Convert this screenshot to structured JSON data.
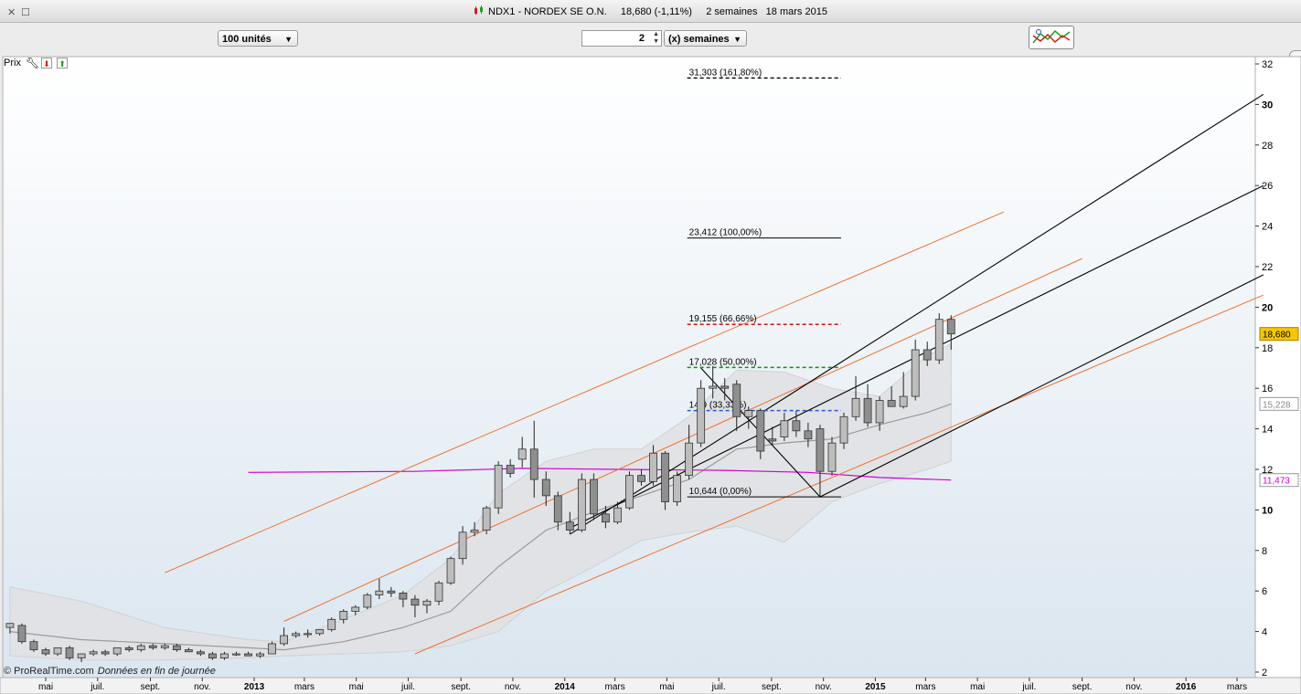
{
  "window": {
    "title": "NDX1 - NORDEX SE O.N.     18,680 (-1,11%)     2 semaines   18 mars 2015"
  },
  "toolbar": {
    "units_select": "100 unités",
    "period_value": "2",
    "period_unit_select": "(x) semaines"
  },
  "panel": {
    "label": "Prix",
    "icons": [
      "wrench-icon",
      "arrow-down-icon",
      "arrow-up-icon"
    ]
  },
  "credit": {
    "source": "© ProRealTime.com",
    "note": "Données en fin de journée"
  },
  "colors": {
    "candle": "#a9a9a9",
    "band_fill": "#e0e1e3",
    "ma_line": "#9a9a9a",
    "long_ma": "#d400d4",
    "channel_black": "#000000",
    "channel_orange": "#f07030",
    "fib_100": "#000000",
    "fib_66": "#d00000",
    "fib_50": "#00a000",
    "fib_33": "#3050e0",
    "price_badge": "#f6c600"
  },
  "chart_data": {
    "type": "candlestick",
    "y_axis": {
      "range": [
        2,
        32
      ],
      "ticks": [
        2,
        4,
        6,
        8,
        10,
        12,
        14,
        16,
        18,
        20,
        22,
        24,
        26,
        28,
        30,
        32
      ],
      "bold_ticks": [
        10,
        20,
        30
      ]
    },
    "x_axis": {
      "labels": [
        {
          "t": "2012-05-01",
          "label": "mai",
          "bold": false
        },
        {
          "t": "2012-07-01",
          "label": "juil.",
          "bold": false
        },
        {
          "t": "2012-09-01",
          "label": "sept.",
          "bold": false
        },
        {
          "t": "2012-11-01",
          "label": "nov.",
          "bold": false
        },
        {
          "t": "2013-01-01",
          "label": "2013",
          "bold": true
        },
        {
          "t": "2013-03-01",
          "label": "mars",
          "bold": false
        },
        {
          "t": "2013-05-01",
          "label": "mai",
          "bold": false
        },
        {
          "t": "2013-07-01",
          "label": "juil.",
          "bold": false
        },
        {
          "t": "2013-09-01",
          "label": "sept.",
          "bold": false
        },
        {
          "t": "2013-11-01",
          "label": "nov.",
          "bold": false
        },
        {
          "t": "2014-01-01",
          "label": "2014",
          "bold": true
        },
        {
          "t": "2014-03-01",
          "label": "mars",
          "bold": false
        },
        {
          "t": "2014-05-01",
          "label": "mai",
          "bold": false
        },
        {
          "t": "2014-07-01",
          "label": "juil.",
          "bold": false
        },
        {
          "t": "2014-09-01",
          "label": "sept.",
          "bold": false
        },
        {
          "t": "2014-11-01",
          "label": "nov.",
          "bold": false
        },
        {
          "t": "2015-01-01",
          "label": "2015",
          "bold": true
        },
        {
          "t": "2015-03-01",
          "label": "mars",
          "bold": false
        },
        {
          "t": "2015-05-01",
          "label": "mai",
          "bold": false
        },
        {
          "t": "2015-07-01",
          "label": "juil.",
          "bold": false
        },
        {
          "t": "2015-09-01",
          "label": "sept.",
          "bold": false
        },
        {
          "t": "2015-11-01",
          "label": "nov.",
          "bold": false
        },
        {
          "t": "2016-01-01",
          "label": "2016",
          "bold": true
        },
        {
          "t": "2016-03-01",
          "label": "mars",
          "bold": false
        }
      ]
    },
    "candles": [
      {
        "t": "2012-03-20",
        "o": 4.2,
        "h": 4.4,
        "l": 3.9,
        "c": 4.4
      },
      {
        "t": "2012-04-03",
        "o": 4.3,
        "h": 4.4,
        "l": 3.4,
        "c": 3.5
      },
      {
        "t": "2012-04-17",
        "o": 3.5,
        "h": 3.6,
        "l": 3.0,
        "c": 3.1
      },
      {
        "t": "2012-05-01",
        "o": 3.1,
        "h": 3.2,
        "l": 2.8,
        "c": 2.9
      },
      {
        "t": "2012-05-15",
        "o": 2.9,
        "h": 3.2,
        "l": 2.8,
        "c": 3.2
      },
      {
        "t": "2012-05-29",
        "o": 3.2,
        "h": 3.3,
        "l": 2.6,
        "c": 2.7
      },
      {
        "t": "2012-06-12",
        "o": 2.7,
        "h": 2.9,
        "l": 2.5,
        "c": 2.9
      },
      {
        "t": "2012-06-26",
        "o": 2.9,
        "h": 3.1,
        "l": 2.8,
        "c": 3.0
      },
      {
        "t": "2012-07-10",
        "o": 3.0,
        "h": 3.1,
        "l": 2.8,
        "c": 2.9
      },
      {
        "t": "2012-07-24",
        "o": 2.9,
        "h": 3.2,
        "l": 2.8,
        "c": 3.2
      },
      {
        "t": "2012-08-07",
        "o": 3.2,
        "h": 3.3,
        "l": 3.0,
        "c": 3.1
      },
      {
        "t": "2012-08-21",
        "o": 3.1,
        "h": 3.4,
        "l": 3.0,
        "c": 3.3
      },
      {
        "t": "2012-09-04",
        "o": 3.3,
        "h": 3.4,
        "l": 3.1,
        "c": 3.2
      },
      {
        "t": "2012-09-18",
        "o": 3.2,
        "h": 3.4,
        "l": 3.1,
        "c": 3.3
      },
      {
        "t": "2012-10-02",
        "o": 3.3,
        "h": 3.4,
        "l": 3.0,
        "c": 3.1
      },
      {
        "t": "2012-10-16",
        "o": 3.1,
        "h": 3.2,
        "l": 3.0,
        "c": 3.0
      },
      {
        "t": "2012-10-30",
        "o": 3.0,
        "h": 3.1,
        "l": 2.8,
        "c": 2.9
      },
      {
        "t": "2012-11-13",
        "o": 2.9,
        "h": 3.0,
        "l": 2.6,
        "c": 2.7
      },
      {
        "t": "2012-11-27",
        "o": 2.7,
        "h": 3.0,
        "l": 2.6,
        "c": 2.9
      },
      {
        "t": "2012-12-11",
        "o": 2.9,
        "h": 3.0,
        "l": 2.8,
        "c": 2.9
      },
      {
        "t": "2012-12-25",
        "o": 2.9,
        "h": 3.0,
        "l": 2.8,
        "c": 2.8
      },
      {
        "t": "2013-01-08",
        "o": 2.8,
        "h": 3.0,
        "l": 2.7,
        "c": 2.9
      },
      {
        "t": "2013-01-22",
        "o": 2.9,
        "h": 3.5,
        "l": 2.9,
        "c": 3.4
      },
      {
        "t": "2013-02-05",
        "o": 3.4,
        "h": 4.2,
        "l": 3.3,
        "c": 3.8
      },
      {
        "t": "2013-02-19",
        "o": 3.8,
        "h": 4.0,
        "l": 3.7,
        "c": 3.9
      },
      {
        "t": "2013-03-05",
        "o": 3.9,
        "h": 4.1,
        "l": 3.7,
        "c": 3.9
      },
      {
        "t": "2013-03-19",
        "o": 3.9,
        "h": 4.1,
        "l": 3.8,
        "c": 4.1
      },
      {
        "t": "2013-04-02",
        "o": 4.1,
        "h": 4.7,
        "l": 4.0,
        "c": 4.6
      },
      {
        "t": "2013-04-16",
        "o": 4.6,
        "h": 5.1,
        "l": 4.4,
        "c": 5.0
      },
      {
        "t": "2013-04-30",
        "o": 5.0,
        "h": 5.3,
        "l": 4.8,
        "c": 5.2
      },
      {
        "t": "2013-05-14",
        "o": 5.2,
        "h": 5.9,
        "l": 5.1,
        "c": 5.8
      },
      {
        "t": "2013-05-28",
        "o": 5.8,
        "h": 6.6,
        "l": 5.6,
        "c": 6.0
      },
      {
        "t": "2013-06-11",
        "o": 6.0,
        "h": 6.2,
        "l": 5.7,
        "c": 5.9
      },
      {
        "t": "2013-06-25",
        "o": 5.9,
        "h": 6.0,
        "l": 5.2,
        "c": 5.6
      },
      {
        "t": "2013-07-09",
        "o": 5.6,
        "h": 5.8,
        "l": 4.7,
        "c": 5.3
      },
      {
        "t": "2013-07-23",
        "o": 5.3,
        "h": 5.6,
        "l": 4.9,
        "c": 5.5
      },
      {
        "t": "2013-08-06",
        "o": 5.5,
        "h": 6.5,
        "l": 5.3,
        "c": 6.4
      },
      {
        "t": "2013-08-20",
        "o": 6.4,
        "h": 7.7,
        "l": 6.3,
        "c": 7.6
      },
      {
        "t": "2013-09-03",
        "o": 7.6,
        "h": 9.2,
        "l": 7.3,
        "c": 8.9
      },
      {
        "t": "2013-09-17",
        "o": 8.9,
        "h": 9.4,
        "l": 8.7,
        "c": 9.0
      },
      {
        "t": "2013-10-01",
        "o": 9.0,
        "h": 10.2,
        "l": 8.8,
        "c": 10.1
      },
      {
        "t": "2013-10-15",
        "o": 10.1,
        "h": 12.4,
        "l": 9.8,
        "c": 12.2
      },
      {
        "t": "2013-10-29",
        "o": 12.2,
        "h": 12.5,
        "l": 11.6,
        "c": 11.8
      },
      {
        "t": "2013-11-12",
        "o": 12.5,
        "h": 13.6,
        "l": 12.1,
        "c": 13.0
      },
      {
        "t": "2013-11-26",
        "o": 13.0,
        "h": 14.4,
        "l": 10.6,
        "c": 11.5
      },
      {
        "t": "2013-12-10",
        "o": 11.5,
        "h": 11.9,
        "l": 10.2,
        "c": 10.7
      },
      {
        "t": "2013-12-24",
        "o": 10.7,
        "h": 10.9,
        "l": 9.0,
        "c": 9.4
      },
      {
        "t": "2014-01-07",
        "o": 9.4,
        "h": 9.9,
        "l": 8.8,
        "c": 9.0
      },
      {
        "t": "2014-01-21",
        "o": 9.0,
        "h": 11.8,
        "l": 8.9,
        "c": 11.5
      },
      {
        "t": "2014-02-04",
        "o": 11.5,
        "h": 11.8,
        "l": 9.5,
        "c": 9.8
      },
      {
        "t": "2014-02-18",
        "o": 9.8,
        "h": 10.2,
        "l": 9.1,
        "c": 9.4
      },
      {
        "t": "2014-03-04",
        "o": 9.4,
        "h": 10.4,
        "l": 9.3,
        "c": 10.1
      },
      {
        "t": "2014-03-18",
        "o": 10.1,
        "h": 11.9,
        "l": 10.0,
        "c": 11.7
      },
      {
        "t": "2014-04-01",
        "o": 11.7,
        "h": 12.0,
        "l": 11.2,
        "c": 11.4
      },
      {
        "t": "2014-04-15",
        "o": 11.4,
        "h": 13.2,
        "l": 11.2,
        "c": 12.8
      },
      {
        "t": "2014-04-29",
        "o": 12.8,
        "h": 12.9,
        "l": 10.0,
        "c": 10.4
      },
      {
        "t": "2014-05-13",
        "o": 10.4,
        "h": 11.9,
        "l": 10.2,
        "c": 11.7
      },
      {
        "t": "2014-05-27",
        "o": 11.7,
        "h": 14.2,
        "l": 11.5,
        "c": 13.3
      },
      {
        "t": "2014-06-10",
        "o": 13.3,
        "h": 16.4,
        "l": 13.1,
        "c": 16.0
      },
      {
        "t": "2014-06-24",
        "o": 16.0,
        "h": 17.1,
        "l": 15.5,
        "c": 16.1
      },
      {
        "t": "2014-07-08",
        "o": 16.1,
        "h": 16.5,
        "l": 15.4,
        "c": 16.0
      },
      {
        "t": "2014-07-22",
        "o": 16.2,
        "h": 16.4,
        "l": 13.9,
        "c": 14.6
      },
      {
        "t": "2014-08-05",
        "o": 14.6,
        "h": 15.1,
        "l": 14.0,
        "c": 14.9
      },
      {
        "t": "2014-08-19",
        "o": 14.9,
        "h": 15.0,
        "l": 12.5,
        "c": 12.9
      },
      {
        "t": "2014-09-02",
        "o": 13.5,
        "h": 14.1,
        "l": 13.2,
        "c": 13.4
      },
      {
        "t": "2014-09-16",
        "o": 13.6,
        "h": 14.8,
        "l": 13.4,
        "c": 14.4
      },
      {
        "t": "2014-09-30",
        "o": 14.4,
        "h": 14.9,
        "l": 13.6,
        "c": 13.9
      },
      {
        "t": "2014-10-14",
        "o": 13.9,
        "h": 14.3,
        "l": 13.1,
        "c": 13.5
      },
      {
        "t": "2014-10-28",
        "o": 14.0,
        "h": 14.2,
        "l": 10.6,
        "c": 11.9
      },
      {
        "t": "2014-11-11",
        "o": 11.9,
        "h": 13.6,
        "l": 11.7,
        "c": 13.3
      },
      {
        "t": "2014-11-25",
        "o": 13.3,
        "h": 14.8,
        "l": 13.0,
        "c": 14.6
      },
      {
        "t": "2014-12-09",
        "o": 14.6,
        "h": 16.6,
        "l": 14.4,
        "c": 15.5
      },
      {
        "t": "2014-12-23",
        "o": 15.5,
        "h": 16.2,
        "l": 14.1,
        "c": 14.3
      },
      {
        "t": "2015-01-06",
        "o": 14.3,
        "h": 15.6,
        "l": 13.9,
        "c": 15.4
      },
      {
        "t": "2015-01-20",
        "o": 15.4,
        "h": 16.1,
        "l": 15.2,
        "c": 15.1
      },
      {
        "t": "2015-02-03",
        "o": 15.1,
        "h": 16.8,
        "l": 15.0,
        "c": 15.6
      },
      {
        "t": "2015-02-17",
        "o": 15.6,
        "h": 18.4,
        "l": 15.4,
        "c": 17.9
      },
      {
        "t": "2015-03-03",
        "o": 17.9,
        "h": 18.3,
        "l": 17.1,
        "c": 17.4
      },
      {
        "t": "2015-03-17",
        "o": 17.4,
        "h": 19.7,
        "l": 17.2,
        "c": 19.4
      },
      {
        "t": "2015-03-31",
        "o": 19.4,
        "h": 19.6,
        "l": 17.9,
        "c": 18.68
      }
    ],
    "bollinger": {
      "t": [
        "2012-03-20",
        "2012-06-12",
        "2012-09-18",
        "2012-12-25",
        "2013-02-05",
        "2013-04-16",
        "2013-06-25",
        "2013-08-20",
        "2013-10-15",
        "2013-12-10",
        "2014-02-04",
        "2014-04-01",
        "2014-05-27",
        "2014-07-22",
        "2014-09-16",
        "2014-11-11",
        "2015-01-06",
        "2015-03-03",
        "2015-03-31"
      ],
      "upper": [
        6.2,
        5.5,
        4.2,
        3.6,
        3.5,
        4.6,
        5.8,
        7.6,
        10.8,
        12.4,
        13.0,
        13.0,
        14.6,
        16.9,
        16.8,
        16.0,
        15.6,
        17.6,
        18.2
      ],
      "mid": [
        4.0,
        3.6,
        3.4,
        3.2,
        3.1,
        3.5,
        4.2,
        5.0,
        7.2,
        9.0,
        9.9,
        10.7,
        11.5,
        13.0,
        13.3,
        13.5,
        14.2,
        14.8,
        15.228
      ],
      "lower": [
        2.8,
        2.6,
        2.6,
        2.7,
        2.8,
        2.9,
        3.0,
        3.3,
        4.0,
        6.0,
        7.2,
        8.5,
        8.9,
        9.2,
        8.4,
        10.4,
        11.3,
        12.0,
        12.4
      ]
    },
    "long_ma": {
      "t": [
        "2012-12-25",
        "2013-07-09",
        "2013-11-12",
        "2014-03-04",
        "2014-07-08",
        "2014-10-14",
        "2015-01-06",
        "2015-03-31"
      ],
      "v": [
        11.85,
        11.9,
        12.05,
        12.0,
        11.95,
        11.85,
        11.6,
        11.473
      ]
    },
    "fibonacci": {
      "t_start": "2014-06-10",
      "t_end": "2014-11-11",
      "levels": [
        {
          "value": 31.303,
          "label": "31,303 (161,80%)",
          "color": "#000000",
          "dash": true
        },
        {
          "value": 23.412,
          "label": "23,412 (100,00%)",
          "color": "#000000",
          "dash": false
        },
        {
          "value": 19.155,
          "label": "19,155 (66,66%)",
          "color": "#d00000",
          "dash": true
        },
        {
          "value": 17.028,
          "label": "17,028 (50,00%)",
          "color": "#00a000",
          "dash": true
        },
        {
          "value": 14.9,
          "label": "14,9 (33,33%)",
          "color": "#3050e0",
          "dash": true
        },
        {
          "value": 10.644,
          "label": "10,644 (0,00%)",
          "color": "#000000",
          "dash": false
        }
      ]
    },
    "trendlines": [
      {
        "color": "#f07030",
        "t1": "2012-09-18",
        "v1": 6.9,
        "t2": "2015-06-01",
        "v2": 24.7
      },
      {
        "color": "#f07030",
        "t1": "2013-02-05",
        "v1": 4.5,
        "t2": "2015-09-01",
        "v2": 22.4
      },
      {
        "color": "#f07030",
        "t1": "2013-07-09",
        "v1": 2.9,
        "t2": "2016-04-01",
        "v2": 20.6
      },
      {
        "color": "#000000",
        "t1": "2014-01-07",
        "v1": 8.8,
        "t2": "2016-04-01",
        "v2": 30.5
      },
      {
        "color": "#000000",
        "t1": "2014-01-07",
        "v1": 9.1,
        "t2": "2016-04-01",
        "v2": 26.0
      },
      {
        "color": "#000000",
        "t1": "2014-10-28",
        "v1": 10.644,
        "t2": "2016-04-01",
        "v2": 21.6
      },
      {
        "color": "#000000",
        "t1": "2014-06-10",
        "v1": 17.0,
        "t2": "2014-10-28",
        "v2": 10.644
      }
    ],
    "last_price": {
      "value": 18.68,
      "label": "18,680"
    },
    "axis_badges": [
      {
        "value": 15.228,
        "label": "15,228",
        "color": "#888888"
      },
      {
        "value": 11.473,
        "label": "11,473",
        "color": "#d400d4"
      }
    ]
  }
}
